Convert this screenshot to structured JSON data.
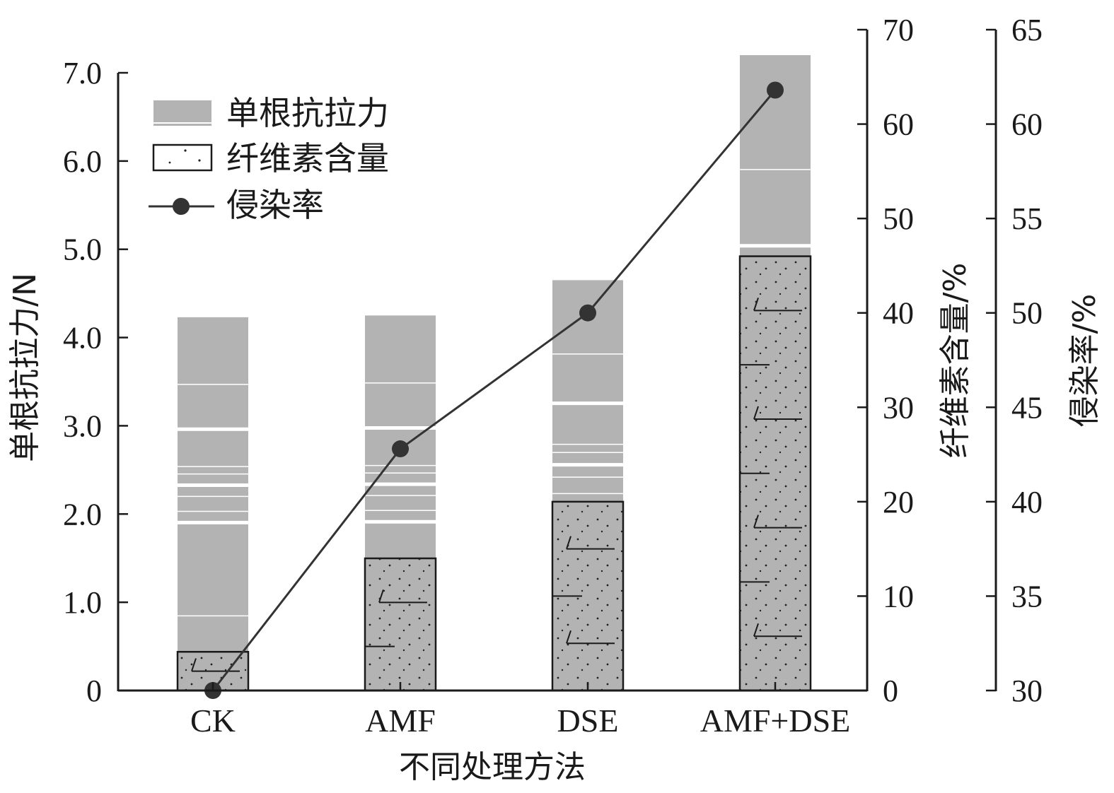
{
  "chart_data": {
    "type": "bar",
    "categories": [
      "CK",
      "AMF",
      "DSE",
      "AMF+DSE"
    ],
    "xlabel": "不同处理方法",
    "series": [
      {
        "name": "单根抗拉力",
        "type": "bar",
        "axis": "left",
        "values": [
          4.23,
          4.25,
          4.65,
          7.2
        ],
        "color": "#b3b3b3"
      },
      {
        "name": "纤维素含量",
        "type": "bar",
        "axis": "right1",
        "values": [
          4.1,
          14.0,
          20.0,
          46.0
        ],
        "color": "#b3b3b3",
        "pattern": "dotted"
      },
      {
        "name": "侵染率",
        "type": "line",
        "axis": "right2",
        "values": [
          30.0,
          42.8,
          50.0,
          61.8
        ],
        "color": "#333333"
      }
    ],
    "axes": {
      "left": {
        "label": "单根抗拉力/N",
        "ylim": [
          0,
          7.0
        ],
        "ticks": [
          0,
          1.0,
          2.0,
          3.0,
          4.0,
          5.0,
          6.0,
          7.0
        ],
        "tick_labels": [
          "0",
          "1.0",
          "2.0",
          "3.0",
          "4.0",
          "5.0",
          "6.0",
          "7.0"
        ]
      },
      "right1": {
        "label": "纤维素含量/%",
        "ylim": [
          0,
          70
        ],
        "ticks": [
          0,
          10,
          20,
          30,
          40,
          50,
          60,
          70
        ],
        "tick_labels": [
          "0",
          "10",
          "20",
          "30",
          "40",
          "50",
          "60",
          "70"
        ]
      },
      "right2": {
        "label": "侵染率/%",
        "ylim": [
          30,
          65
        ],
        "ticks": [
          30,
          35,
          40,
          45,
          50,
          55,
          60,
          65
        ],
        "tick_labels": [
          "30",
          "35",
          "40",
          "45",
          "50",
          "55",
          "60",
          "65"
        ]
      }
    },
    "legend": {
      "position": "top-left",
      "entries": [
        "单根抗拉力",
        "纤维素含量",
        "侵染率"
      ]
    },
    "grid": false
  }
}
